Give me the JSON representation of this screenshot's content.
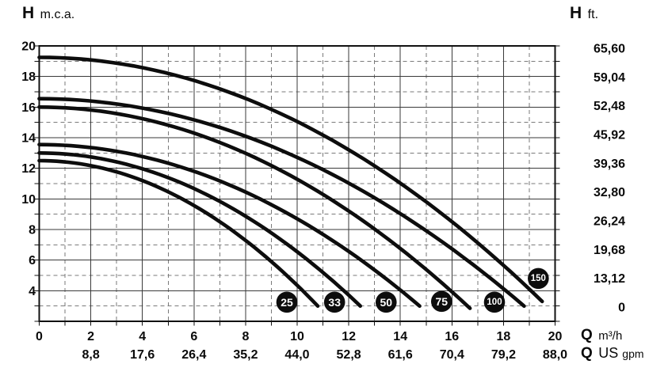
{
  "header": {
    "left_axis_symbol": "H",
    "left_axis_unit": "m.c.a.",
    "right_axis_symbol": "H",
    "right_axis_unit": "ft.",
    "bottom_primary_symbol": "Q",
    "bottom_primary_unit": "m³/h",
    "bottom_secondary_symbol": "Q",
    "bottom_secondary_unit_main": "US",
    "bottom_secondary_unit_small": "gpm"
  },
  "chart_data": {
    "type": "line",
    "title": "",
    "xlabel": "Q (m³/h)",
    "ylabel": "H (m.c.a.)",
    "x_axis": {
      "min": 0,
      "max": 20,
      "major_tick_labels": [
        "0",
        "2",
        "4",
        "6",
        "8",
        "10",
        "12",
        "14",
        "16",
        "18",
        "20"
      ],
      "major_tick_values": [
        0,
        2,
        4,
        6,
        8,
        10,
        12,
        14,
        16,
        18,
        20
      ],
      "minor_step": 1
    },
    "x_axis_secondary": {
      "unit": "US gpm",
      "ticks": [
        {
          "q": 2,
          "label": "8,8"
        },
        {
          "q": 4,
          "label": "17,6"
        },
        {
          "q": 6,
          "label": "26,4"
        },
        {
          "q": 8,
          "label": "35,2"
        },
        {
          "q": 10,
          "label": "44,0"
        },
        {
          "q": 12,
          "label": "52,8"
        },
        {
          "q": 14,
          "label": "61,6"
        },
        {
          "q": 16,
          "label": "70,4"
        },
        {
          "q": 18,
          "label": "79,2"
        },
        {
          "q": 20,
          "label": "88,0"
        }
      ]
    },
    "y_axis": {
      "min": 2,
      "max": 20,
      "major_tick_labels": [
        "20",
        "18",
        "16",
        "14",
        "12",
        "10",
        "8",
        "6",
        "4"
      ],
      "major_tick_values": [
        20,
        18,
        16,
        14,
        12,
        10,
        8,
        6,
        4
      ],
      "minor_step": 1
    },
    "y_axis_secondary": {
      "unit": "ft.",
      "labels": [
        "65,60",
        "59,04",
        "52,48",
        "45,92",
        "39,36",
        "32,80",
        "26,24",
        "19,68",
        "13,12",
        "0"
      ]
    },
    "grid": {
      "major_style": "solid",
      "minor_style": "dashed"
    },
    "curve_model": "H(Q) = shutoff_head - (shutoff_head - head_at_max_flow) * (Q / max_flow)^2",
    "series": [
      {
        "name": "25",
        "shutoff_head_m": 12.5,
        "max_flow_m3h": 10.8,
        "head_at_max_flow_m": 3.0,
        "badge": {
          "q": 9.6,
          "h": 3.25
        }
      },
      {
        "name": "33",
        "shutoff_head_m": 13.0,
        "max_flow_m3h": 12.45,
        "head_at_max_flow_m": 3.0,
        "badge": {
          "q": 11.45,
          "h": 3.25
        }
      },
      {
        "name": "50",
        "shutoff_head_m": 13.55,
        "max_flow_m3h": 14.75,
        "head_at_max_flow_m": 3.0,
        "badge": {
          "q": 13.45,
          "h": 3.25
        }
      },
      {
        "name": "75",
        "shutoff_head_m": 16.0,
        "max_flow_m3h": 16.7,
        "head_at_max_flow_m": 2.85,
        "badge": {
          "q": 15.6,
          "h": 3.3
        }
      },
      {
        "name": "100",
        "shutoff_head_m": 16.55,
        "max_flow_m3h": 18.8,
        "head_at_max_flow_m": 3.0,
        "badge": {
          "q": 17.65,
          "h": 3.25
        }
      },
      {
        "name": "150",
        "shutoff_head_m": 19.25,
        "max_flow_m3h": 19.5,
        "head_at_max_flow_m": 3.3,
        "badge": {
          "q": 19.35,
          "h": 4.8
        }
      }
    ],
    "colors": {
      "curve": "#0d0d0d",
      "major_grid": "#3a3a3a",
      "minor_grid": "#7a7a7a",
      "border": "#111111",
      "badge_bg": "#0d0d0d",
      "badge_text": "#ffffff",
      "text": "#0a0a0a"
    }
  }
}
